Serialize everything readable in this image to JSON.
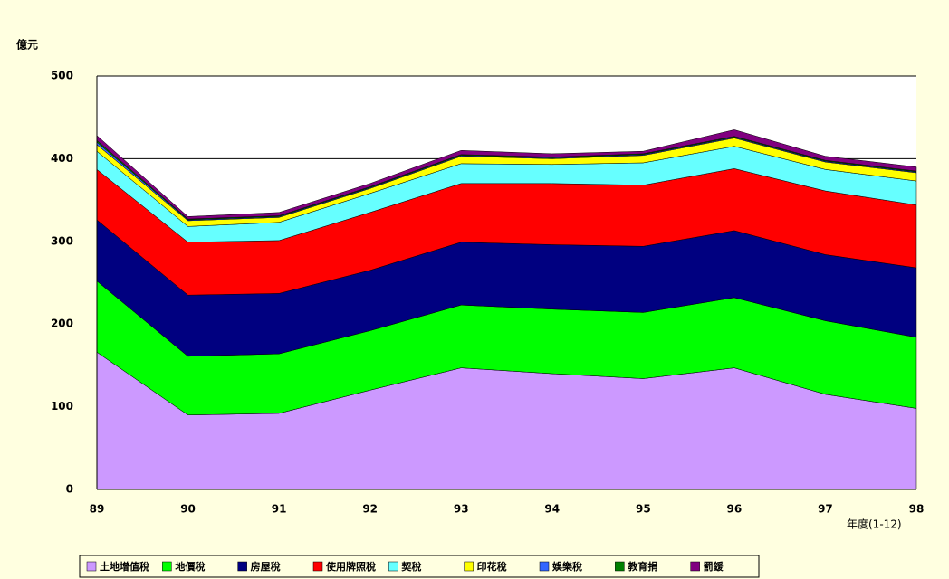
{
  "chart_data": {
    "type": "stacked_area",
    "y_label": "億元",
    "x_label": "年度(1-12)",
    "categories": [
      "89",
      "90",
      "91",
      "92",
      "93",
      "94",
      "95",
      "96",
      "97",
      "98"
    ],
    "ylim": [
      0,
      500
    ],
    "yticks": [
      0,
      100,
      200,
      300,
      400,
      500
    ],
    "grid": true,
    "series": [
      {
        "name": "土地增值稅",
        "color": "#cc99ff",
        "values": [
          166,
          90,
          92,
          120,
          147,
          140,
          134,
          147,
          115,
          98
        ]
      },
      {
        "name": "地價稅",
        "color": "#00ff00",
        "values": [
          86,
          71,
          72,
          72,
          76,
          78,
          80,
          85,
          89,
          86
        ]
      },
      {
        "name": "房屋稅",
        "color": "#000080",
        "values": [
          74,
          74,
          73,
          73,
          76,
          78,
          80,
          81,
          80,
          84
        ]
      },
      {
        "name": "使用牌照稅",
        "color": "#ff0000",
        "values": [
          61,
          64,
          64,
          70,
          71,
          74,
          74,
          75,
          77,
          76
        ]
      },
      {
        "name": "契稅",
        "color": "#66ffff",
        "values": [
          22,
          19,
          22,
          23,
          24,
          23,
          27,
          27,
          26,
          29
        ]
      },
      {
        "name": "印花稅",
        "color": "#ffff00",
        "values": [
          8,
          7,
          6,
          6,
          9,
          7,
          9,
          10,
          9,
          10
        ]
      },
      {
        "name": "娛樂稅",
        "color": "#3366ff",
        "values": [
          3,
          1,
          1,
          1,
          1,
          1,
          1,
          1,
          1,
          1
        ]
      },
      {
        "name": "教育捐",
        "color": "#008000",
        "values": [
          2,
          1,
          1,
          1,
          1,
          1,
          1,
          1,
          1,
          1
        ]
      },
      {
        "name": "罰鍰",
        "color": "#800080",
        "values": [
          6,
          3,
          4,
          4,
          5,
          4,
          3,
          8,
          5,
          5
        ]
      }
    ]
  }
}
